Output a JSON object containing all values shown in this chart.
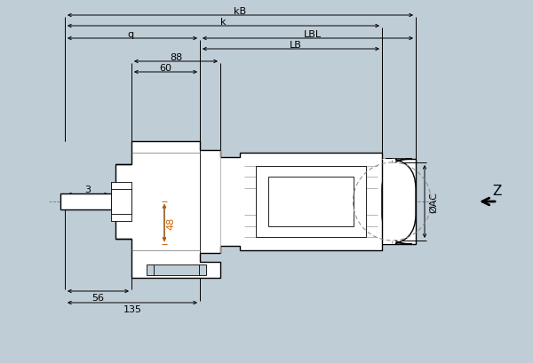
{
  "bg_color": "#bfcdd6",
  "line_color": "#000000",
  "white": "#ffffff",
  "orange_color": "#cc6600",
  "gray_dim": "#444444",
  "figsize": [
    6.0,
    4.1
  ],
  "dpi": 100,
  "labels": {
    "kB": "kB",
    "k": "k",
    "q": "q",
    "LBL": "LBL",
    "LB": "LB",
    "88": "88",
    "60": "60",
    "3": "3",
    "48": "48",
    "56": "56",
    "135": "135",
    "AC": "ØAC",
    "Z": "Z"
  }
}
